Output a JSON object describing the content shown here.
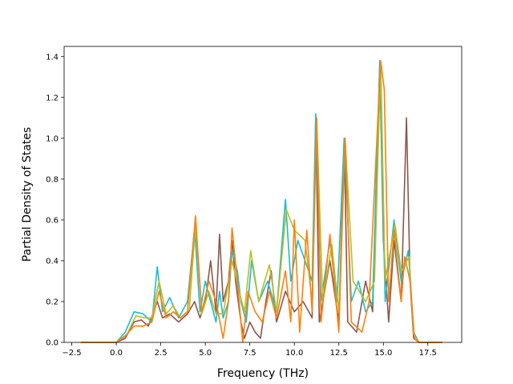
{
  "chart_data": {
    "type": "line",
    "title": "",
    "xlabel": "Frequency (THz)",
    "ylabel": "Partial Density of States",
    "xlim": [
      -2.93,
      19.4
    ],
    "ylim": [
      0,
      1.45
    ],
    "xticks": [
      -2.5,
      0.0,
      2.5,
      5.0,
      7.5,
      10.0,
      12.5,
      15.0,
      17.5
    ],
    "xtick_labels": [
      "−2.5",
      "0.0",
      "2.5",
      "5.0",
      "7.5",
      "10.0",
      "12.5",
      "15.0",
      "17.5"
    ],
    "yticks": [
      0.0,
      0.2,
      0.4,
      0.6,
      0.8,
      1.0,
      1.2,
      1.4
    ],
    "ytick_labels": [
      "0.0",
      "0.2",
      "0.4",
      "0.6",
      "0.8",
      "1.0",
      "1.2",
      "1.4"
    ],
    "grid": false,
    "legend": "none",
    "series": [
      {
        "color": "#8c564b",
        "points": [
          [
            -2.0,
            0
          ],
          [
            0.0,
            0
          ],
          [
            0.5,
            0.02
          ],
          [
            1.0,
            0.1
          ],
          [
            1.4,
            0.11
          ],
          [
            1.8,
            0.08
          ],
          [
            2.3,
            0.2
          ],
          [
            2.6,
            0.12
          ],
          [
            3.0,
            0.14
          ],
          [
            3.5,
            0.1
          ],
          [
            4.0,
            0.14
          ],
          [
            4.4,
            0.2
          ],
          [
            4.7,
            0.12
          ],
          [
            5.0,
            0.2
          ],
          [
            5.3,
            0.4
          ],
          [
            5.6,
            0.15
          ],
          [
            5.8,
            0.53
          ],
          [
            6.0,
            0.2
          ],
          [
            6.3,
            0.3
          ],
          [
            6.5,
            0.5
          ],
          [
            6.7,
            0.3
          ],
          [
            7.0,
            0.1
          ],
          [
            7.2,
            0.02
          ],
          [
            7.5,
            0.1
          ],
          [
            7.8,
            0.05
          ],
          [
            8.1,
            0.02
          ],
          [
            8.4,
            0.2
          ],
          [
            8.7,
            0.35
          ],
          [
            9.0,
            0.1
          ],
          [
            9.5,
            0.25
          ],
          [
            10.0,
            0.15
          ],
          [
            10.5,
            0.2
          ],
          [
            11.0,
            0.12
          ],
          [
            11.2,
            1.1
          ],
          [
            11.4,
            0.1
          ],
          [
            12.0,
            0.4
          ],
          [
            12.5,
            0.1
          ],
          [
            12.8,
            1.0
          ],
          [
            13.0,
            0.1
          ],
          [
            13.5,
            0.05
          ],
          [
            14.0,
            0.3
          ],
          [
            14.4,
            0.15
          ],
          [
            14.8,
            1.37
          ],
          [
            15.0,
            0.5
          ],
          [
            15.3,
            0.1
          ],
          [
            15.6,
            0.5
          ],
          [
            16.0,
            0.2
          ],
          [
            16.3,
            1.1
          ],
          [
            16.5,
            0.3
          ],
          [
            16.7,
            0.02
          ],
          [
            17.0,
            0
          ],
          [
            18.3,
            0
          ]
        ]
      },
      {
        "color": "#17becf",
        "points": [
          [
            -2.0,
            0
          ],
          [
            0.0,
            0
          ],
          [
            0.5,
            0.05
          ],
          [
            1.0,
            0.15
          ],
          [
            1.5,
            0.14
          ],
          [
            2.0,
            0.1
          ],
          [
            2.3,
            0.37
          ],
          [
            2.6,
            0.15
          ],
          [
            3.0,
            0.22
          ],
          [
            3.5,
            0.12
          ],
          [
            4.0,
            0.2
          ],
          [
            4.4,
            0.56
          ],
          [
            4.7,
            0.15
          ],
          [
            5.0,
            0.3
          ],
          [
            5.3,
            0.2
          ],
          [
            5.6,
            0.1
          ],
          [
            5.8,
            0.25
          ],
          [
            6.0,
            0.12
          ],
          [
            6.3,
            0.2
          ],
          [
            6.5,
            0.45
          ],
          [
            6.8,
            0.35
          ],
          [
            7.0,
            0.2
          ],
          [
            7.3,
            0.1
          ],
          [
            7.6,
            0.4
          ],
          [
            8.0,
            0.2
          ],
          [
            8.5,
            0.3
          ],
          [
            9.0,
            0.15
          ],
          [
            9.5,
            0.7
          ],
          [
            9.8,
            0.3
          ],
          [
            10.2,
            0.5
          ],
          [
            10.6,
            0.4
          ],
          [
            11.0,
            0.3
          ],
          [
            11.2,
            1.12
          ],
          [
            11.5,
            0.2
          ],
          [
            12.0,
            0.5
          ],
          [
            12.4,
            0.2
          ],
          [
            12.8,
            1.0
          ],
          [
            13.2,
            0.2
          ],
          [
            13.6,
            0.3
          ],
          [
            14.0,
            0.15
          ],
          [
            14.4,
            0.2
          ],
          [
            14.8,
            1.38
          ],
          [
            15.1,
            0.2
          ],
          [
            15.6,
            0.6
          ],
          [
            16.0,
            0.3
          ],
          [
            16.4,
            0.45
          ],
          [
            16.7,
            0.05
          ],
          [
            17.0,
            0
          ],
          [
            18.3,
            0
          ]
        ]
      },
      {
        "color": "#bcbd22",
        "points": [
          [
            -2.0,
            0
          ],
          [
            0.0,
            0
          ],
          [
            0.6,
            0.04
          ],
          [
            1.1,
            0.13
          ],
          [
            1.6,
            0.12
          ],
          [
            2.0,
            0.12
          ],
          [
            2.4,
            0.3
          ],
          [
            2.8,
            0.14
          ],
          [
            3.2,
            0.18
          ],
          [
            3.6,
            0.12
          ],
          [
            4.1,
            0.16
          ],
          [
            4.45,
            0.58
          ],
          [
            4.8,
            0.14
          ],
          [
            5.2,
            0.25
          ],
          [
            5.6,
            0.14
          ],
          [
            6.0,
            0.14
          ],
          [
            6.5,
            0.4
          ],
          [
            6.9,
            0.25
          ],
          [
            7.2,
            0.15
          ],
          [
            7.55,
            0.45
          ],
          [
            8.0,
            0.2
          ],
          [
            8.6,
            0.38
          ],
          [
            9.0,
            0.15
          ],
          [
            9.55,
            0.65
          ],
          [
            10.0,
            0.55
          ],
          [
            10.6,
            0.5
          ],
          [
            11.0,
            0.2
          ],
          [
            11.25,
            1.1
          ],
          [
            11.6,
            0.2
          ],
          [
            12.1,
            0.48
          ],
          [
            12.5,
            0.15
          ],
          [
            12.85,
            1.0
          ],
          [
            13.3,
            0.3
          ],
          [
            14.0,
            0.2
          ],
          [
            14.5,
            0.3
          ],
          [
            14.85,
            1.38
          ],
          [
            15.1,
            0.3
          ],
          [
            15.65,
            0.58
          ],
          [
            16.0,
            0.35
          ],
          [
            16.45,
            0.42
          ],
          [
            16.7,
            0.04
          ],
          [
            17.0,
            0
          ],
          [
            18.3,
            0
          ]
        ]
      },
      {
        "color": "#ff7f0e",
        "points": [
          [
            -2.0,
            0
          ],
          [
            0.0,
            0
          ],
          [
            0.5,
            0.03
          ],
          [
            1.0,
            0.08
          ],
          [
            1.5,
            0.08
          ],
          [
            2.0,
            0.1
          ],
          [
            2.4,
            0.25
          ],
          [
            2.8,
            0.12
          ],
          [
            3.2,
            0.15
          ],
          [
            3.6,
            0.12
          ],
          [
            4.0,
            0.15
          ],
          [
            4.45,
            0.62
          ],
          [
            4.8,
            0.15
          ],
          [
            5.2,
            0.3
          ],
          [
            5.6,
            0.2
          ],
          [
            6.0,
            0.02
          ],
          [
            6.3,
            0.2
          ],
          [
            6.5,
            0.56
          ],
          [
            6.8,
            0.3
          ],
          [
            7.1,
            0.0
          ],
          [
            7.4,
            0.25
          ],
          [
            7.8,
            0.15
          ],
          [
            8.2,
            0.1
          ],
          [
            8.6,
            0.25
          ],
          [
            9.0,
            0.12
          ],
          [
            9.5,
            0.35
          ],
          [
            9.8,
            0.1
          ],
          [
            10.0,
            0.6
          ],
          [
            10.3,
            0.05
          ],
          [
            10.7,
            0.55
          ],
          [
            11.0,
            0.15
          ],
          [
            11.25,
            1.1
          ],
          [
            11.5,
            0.1
          ],
          [
            12.0,
            0.53
          ],
          [
            12.5,
            0.05
          ],
          [
            12.85,
            1.0
          ],
          [
            13.2,
            0.1
          ],
          [
            13.8,
            0.05
          ],
          [
            14.2,
            0.2
          ],
          [
            14.85,
            1.38
          ],
          [
            15.05,
            1.24
          ],
          [
            15.3,
            0.2
          ],
          [
            15.6,
            0.55
          ],
          [
            16.0,
            0.2
          ],
          [
            16.2,
            0.42
          ],
          [
            16.5,
            0.3
          ],
          [
            16.75,
            0.02
          ],
          [
            17.0,
            0
          ],
          [
            18.3,
            0
          ]
        ]
      }
    ]
  }
}
